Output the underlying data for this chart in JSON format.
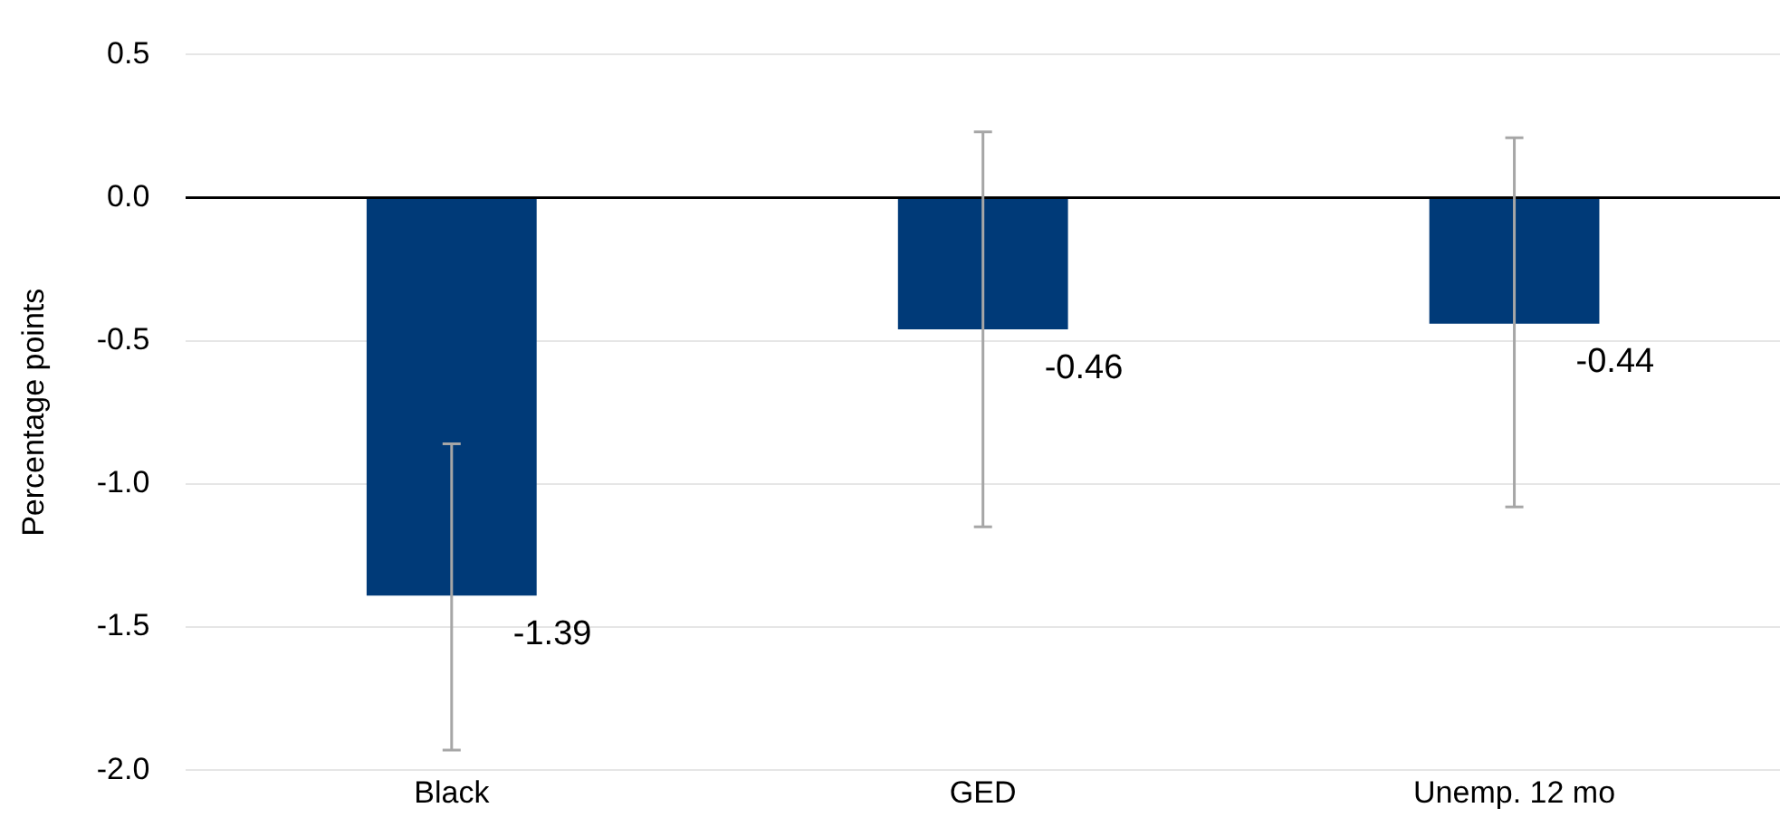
{
  "chart_data": {
    "type": "bar",
    "ylabel": "Percentage points",
    "categories": [
      "Black",
      "GED",
      "Unemp. 12 mo"
    ],
    "values": [
      -1.39,
      -0.46,
      -0.44
    ],
    "color": "#003a78",
    "errors": [
      [
        -1.93,
        -0.86
      ],
      [
        -1.15,
        0.23
      ],
      [
        -1.08,
        0.21
      ]
    ],
    "data_labels": true,
    "ylim": [
      -2.0,
      0.5
    ],
    "yticks": [
      {
        "value": -2.0,
        "label": "-2.0"
      },
      {
        "value": -1.5,
        "label": "-1.5"
      },
      {
        "value": -1.0,
        "label": "-1.0"
      },
      {
        "value": -0.5,
        "label": "-0.5"
      },
      {
        "value": 0,
        "label": "0.0"
      },
      {
        "value": 0.5,
        "label": "0.5"
      }
    ],
    "grid": "y",
    "legend": false
  }
}
